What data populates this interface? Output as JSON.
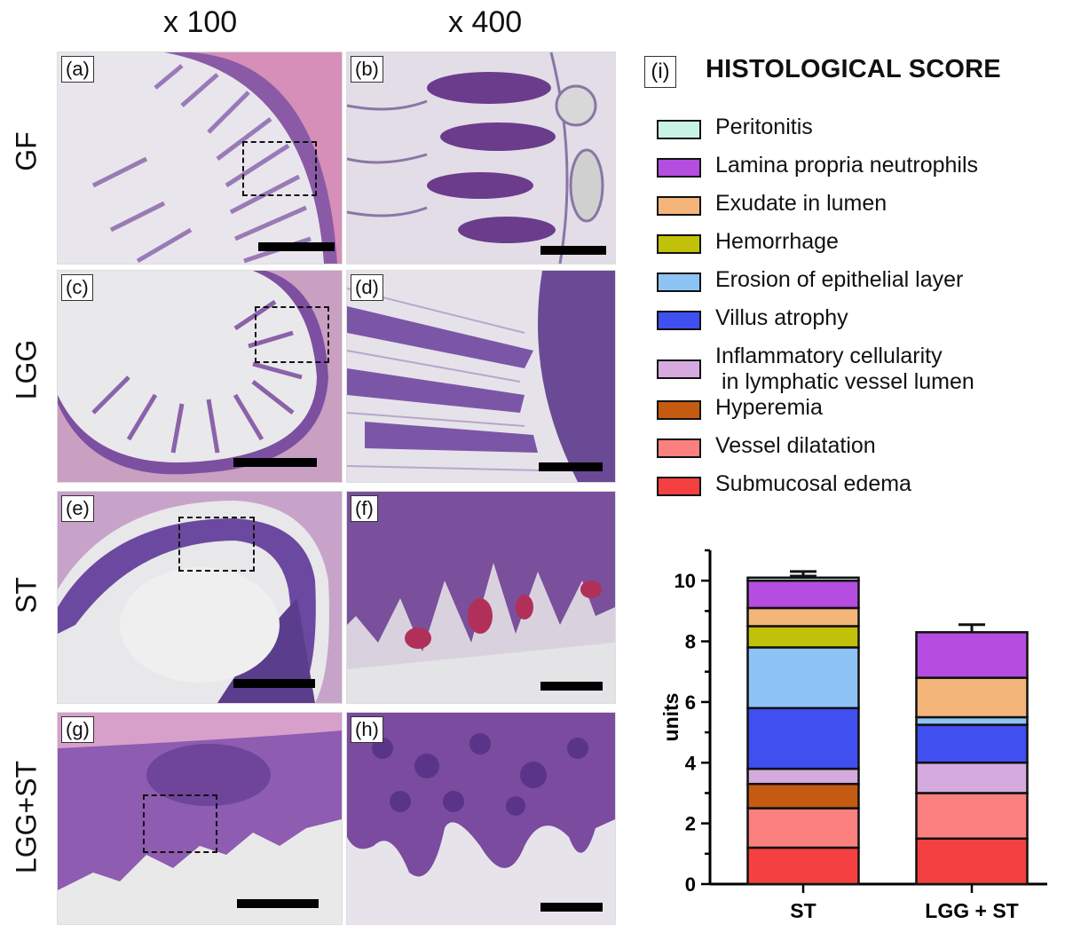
{
  "column_titles": [
    "x 100",
    "x 400"
  ],
  "rows": [
    {
      "label": "GF",
      "panels": [
        "(a)",
        "(b)"
      ]
    },
    {
      "label": "LGG",
      "panels": [
        "(c)",
        "(d)"
      ]
    },
    {
      "label": "ST",
      "panels": [
        "(e)",
        "(f)"
      ]
    },
    {
      "label": "LGG+ST",
      "panels": [
        "(g)",
        "(h)"
      ]
    }
  ],
  "chart_panel_label": "(i)",
  "chart_data": {
    "type": "bar",
    "stacked": true,
    "title": "HISTOLOGICAL SCORE",
    "ylabel": "units",
    "xlabel": "",
    "categories": [
      "ST",
      "LGG + ST"
    ],
    "ylim": [
      0,
      11
    ],
    "yticks": [
      0,
      2,
      4,
      6,
      8,
      10
    ],
    "series": [
      {
        "name": "Submucosal edema",
        "color": "#f44040",
        "values": [
          1.2,
          1.5
        ],
        "errors": [
          0.15,
          0.3
        ]
      },
      {
        "name": "Vessel dilatation",
        "color": "#fb8080",
        "values": [
          1.3,
          1.5
        ],
        "errors": [
          0.2,
          0.3
        ]
      },
      {
        "name": "Hyperemia",
        "color": "#c55a11",
        "values": [
          0.8,
          0.0
        ],
        "errors": [
          0.15,
          0.0
        ]
      },
      {
        "name": "Inflammatory cellularity\n in lymphatic vessel lumen",
        "color": "#d5aadf",
        "values": [
          0.5,
          1.0
        ],
        "errors": [
          0.2,
          0.0
        ]
      },
      {
        "name": "Villus atrophy",
        "color": "#3f4ff0",
        "values": [
          2.0,
          1.25
        ],
        "errors": [
          0.35,
          0.0
        ]
      },
      {
        "name": "Erosion of epithelial layer",
        "color": "#8ec3f5",
        "values": [
          2.0,
          0.25
        ],
        "errors": [
          0.35,
          0.2
        ]
      },
      {
        "name": "Hemorrhage",
        "color": "#c2c10a",
        "values": [
          0.7,
          0.0
        ],
        "errors": [
          0.25,
          0.0
        ]
      },
      {
        "name": "Exudate in lumen",
        "color": "#f4b57a",
        "values": [
          0.6,
          1.3
        ],
        "errors": [
          0.3,
          0.5
        ]
      },
      {
        "name": "Lamina propria neutrophils",
        "color": "#b44de0",
        "values": [
          0.9,
          1.5
        ],
        "errors": [
          0.3,
          0.25
        ]
      },
      {
        "name": "Peritonitis",
        "color": "#c8f2e6",
        "values": [
          0.1,
          0.0
        ],
        "errors": [
          0.05,
          0.0
        ]
      }
    ],
    "legend_order": [
      "Peritonitis",
      "Lamina propria neutrophils",
      "Exudate in lumen",
      "Hemorrhage",
      "Erosion of epithelial layer",
      "Villus atrophy",
      "Inflammatory cellularity\n in lymphatic vessel lumen",
      "Hyperemia",
      "Vessel dilatation",
      "Submucosal edema"
    ]
  }
}
